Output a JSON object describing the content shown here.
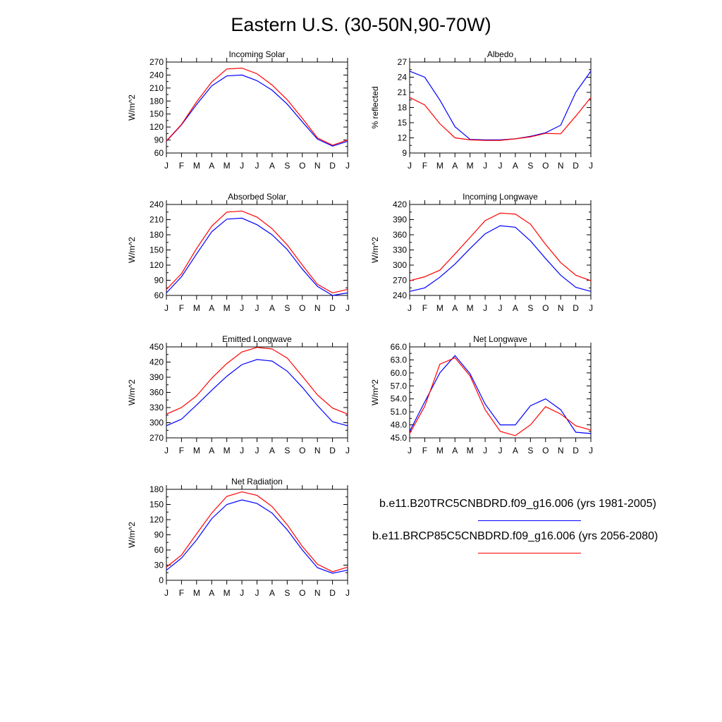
{
  "title": "Eastern U.S. (30-50N,90-70W)",
  "legend": {
    "items": [
      {
        "label": "b.e11.B20TRC5CNBDRD.f09_g16.006 (yrs 1981-2005)",
        "color": "#0000ff"
      },
      {
        "label": "b.e11.BRCP85C5CNBDRD.f09_g16.006 (yrs 2056-2080)",
        "color": "#ff0000"
      }
    ]
  },
  "chart_data": [
    {
      "type": "line",
      "title": "Incoming Solar",
      "ylabel": "W/m^2",
      "categories": [
        "J",
        "F",
        "M",
        "A",
        "M",
        "J",
        "J",
        "A",
        "S",
        "O",
        "N",
        "D",
        "J"
      ],
      "ylim": [
        60,
        270
      ],
      "yticks": [
        60,
        90,
        120,
        150,
        180,
        210,
        240,
        270
      ],
      "ytick_labels": [
        "60",
        "90",
        "120",
        "150",
        "180",
        "210",
        "240",
        "270"
      ],
      "series": [
        {
          "name": "b.e11.B20TRC5CNBDRD.f09_g16.006 (yrs 1981-2005)",
          "color": "#0000ff",
          "values": [
            87,
            125,
            172,
            215,
            238,
            240,
            227,
            205,
            173,
            132,
            92,
            76,
            87
          ]
        },
        {
          "name": "b.e11.BRCP85C5CNBDRD.f09_g16.006 (yrs 2056-2080)",
          "color": "#ff0000",
          "values": [
            88,
            126,
            178,
            224,
            254,
            256,
            243,
            217,
            183,
            140,
            95,
            78,
            90
          ]
        }
      ]
    },
    {
      "type": "line",
      "title": "Albedo",
      "ylabel": "% reflected",
      "categories": [
        "J",
        "F",
        "M",
        "A",
        "M",
        "J",
        "J",
        "A",
        "S",
        "O",
        "N",
        "D",
        "J"
      ],
      "ylim": [
        9,
        27
      ],
      "yticks": [
        9,
        12,
        15,
        18,
        21,
        24,
        27
      ],
      "ytick_labels": [
        "9",
        "12",
        "15",
        "18",
        "21",
        "24",
        "27"
      ],
      "series": [
        {
          "name": "b.e11.B20TRC5CNBDRD.f09_g16.006 (yrs 1981-2005)",
          "color": "#0000ff",
          "values": [
            25.2,
            24,
            19.5,
            14.2,
            11.7,
            11.6,
            11.6,
            11.8,
            12.3,
            13,
            14.5,
            21,
            25.2
          ]
        },
        {
          "name": "b.e11.BRCP85C5CNBDRD.f09_g16.006 (yrs 2056-2080)",
          "color": "#ff0000",
          "values": [
            20,
            18.5,
            14.8,
            12,
            11.6,
            11.5,
            11.5,
            11.8,
            12.2,
            12.9,
            12.8,
            16.3,
            20
          ]
        }
      ]
    },
    {
      "type": "line",
      "title": "Absorbed Solar",
      "ylabel": "W/m^2",
      "categories": [
        "J",
        "F",
        "M",
        "A",
        "M",
        "J",
        "J",
        "A",
        "S",
        "O",
        "N",
        "D",
        "J"
      ],
      "ylim": [
        60,
        240
      ],
      "yticks": [
        60,
        90,
        120,
        150,
        180,
        210,
        240
      ],
      "ytick_labels": [
        "60",
        "90",
        "120",
        "150",
        "180",
        "210",
        "240"
      ],
      "series": [
        {
          "name": "b.e11.B20TRC5CNBDRD.f09_g16.006 (yrs 1981-2005)",
          "color": "#0000ff",
          "values": [
            65,
            97,
            142,
            186,
            211,
            213,
            200,
            180,
            151,
            112,
            78,
            60,
            65
          ]
        },
        {
          "name": "b.e11.BRCP85C5CNBDRD.f09_g16.006 (yrs 2056-2080)",
          "color": "#ff0000",
          "values": [
            72,
            103,
            153,
            197,
            225,
            227,
            215,
            192,
            160,
            120,
            82,
            65,
            72
          ]
        }
      ]
    },
    {
      "type": "line",
      "title": "Incoming Longwave",
      "ylabel": "W/m^2",
      "categories": [
        "J",
        "F",
        "M",
        "A",
        "M",
        "J",
        "J",
        "A",
        "S",
        "O",
        "N",
        "D",
        "J"
      ],
      "ylim": [
        240,
        420
      ],
      "yticks": [
        240,
        270,
        300,
        330,
        360,
        390,
        420
      ],
      "ytick_labels": [
        "240",
        "270",
        "300",
        "330",
        "360",
        "390",
        "420"
      ],
      "series": [
        {
          "name": "b.e11.B20TRC5CNBDRD.f09_g16.006 (yrs 1981-2005)",
          "color": "#0000ff",
          "values": [
            248,
            255,
            276,
            302,
            333,
            362,
            378,
            375,
            348,
            313,
            280,
            256,
            248
          ]
        },
        {
          "name": "b.e11.BRCP85C5CNBDRD.f09_g16.006 (yrs 2056-2080)",
          "color": "#ff0000",
          "values": [
            269,
            277,
            290,
            322,
            355,
            388,
            403,
            401,
            381,
            341,
            305,
            280,
            269
          ]
        }
      ]
    },
    {
      "type": "line",
      "title": "Emitted Longwave",
      "ylabel": "W/m^2",
      "categories": [
        "J",
        "F",
        "M",
        "A",
        "M",
        "J",
        "J",
        "A",
        "S",
        "O",
        "N",
        "D",
        "J"
      ],
      "ylim": [
        270,
        450
      ],
      "yticks": [
        270,
        300,
        330,
        360,
        390,
        420,
        450
      ],
      "ytick_labels": [
        "270",
        "300",
        "330",
        "360",
        "390",
        "420",
        "450"
      ],
      "series": [
        {
          "name": "b.e11.B20TRC5CNBDRD.f09_g16.006 (yrs 1981-2005)",
          "color": "#0000ff",
          "values": [
            294,
            307,
            335,
            364,
            392,
            415,
            425,
            422,
            402,
            370,
            334,
            302,
            294
          ]
        },
        {
          "name": "b.e11.BRCP85C5CNBDRD.f09_g16.006 (yrs 2056-2080)",
          "color": "#ff0000",
          "values": [
            317,
            330,
            353,
            388,
            417,
            440,
            449,
            446,
            428,
            392,
            355,
            329,
            317
          ]
        }
      ]
    },
    {
      "type": "line",
      "title": "Net Longwave",
      "ylabel": "W/m^2",
      "categories": [
        "J",
        "F",
        "M",
        "A",
        "M",
        "J",
        "J",
        "A",
        "S",
        "O",
        "N",
        "D",
        "J"
      ],
      "ylim": [
        45,
        66
      ],
      "yticks": [
        45,
        48,
        51,
        54,
        57,
        60,
        63,
        66
      ],
      "ytick_labels": [
        "45.0",
        "48.0",
        "51.0",
        "54.0",
        "57.0",
        "60.0",
        "63.0",
        "66.0"
      ],
      "series": [
        {
          "name": "b.e11.B20TRC5CNBDRD.f09_g16.006 (yrs 1981-2005)",
          "color": "#0000ff",
          "values": [
            46.5,
            53.3,
            60,
            64,
            59.8,
            52.8,
            48,
            48,
            52.4,
            54,
            51.5,
            46.3,
            46
          ]
        },
        {
          "name": "b.e11.BRCP85C5CNBDRD.f09_g16.006 (yrs 2056-2080)",
          "color": "#ff0000",
          "values": [
            46,
            52.3,
            62,
            63.5,
            59.3,
            51.5,
            46.5,
            45.5,
            48,
            52.2,
            50.5,
            47.8,
            46.8
          ]
        }
      ]
    },
    {
      "type": "line",
      "title": "Net Radiation",
      "ylabel": "W/m^2",
      "categories": [
        "J",
        "F",
        "M",
        "A",
        "M",
        "J",
        "J",
        "A",
        "S",
        "O",
        "N",
        "D",
        "J"
      ],
      "ylim": [
        0,
        180
      ],
      "yticks": [
        0,
        30,
        60,
        90,
        120,
        150,
        180
      ],
      "ytick_labels": [
        "0",
        "30",
        "60",
        "90",
        "120",
        "150",
        "180"
      ],
      "series": [
        {
          "name": "b.e11.B20TRC5CNBDRD.f09_g16.006 (yrs 1981-2005)",
          "color": "#0000ff",
          "values": [
            20,
            44,
            80,
            122,
            150,
            159,
            152,
            133,
            100,
            60,
            25,
            14,
            20
          ]
        },
        {
          "name": "b.e11.BRCP85C5CNBDRD.f09_g16.006 (yrs 2056-2080)",
          "color": "#ff0000",
          "values": [
            26,
            50,
            92,
            133,
            166,
            175,
            168,
            146,
            110,
            67,
            32,
            17,
            26
          ]
        }
      ]
    }
  ]
}
